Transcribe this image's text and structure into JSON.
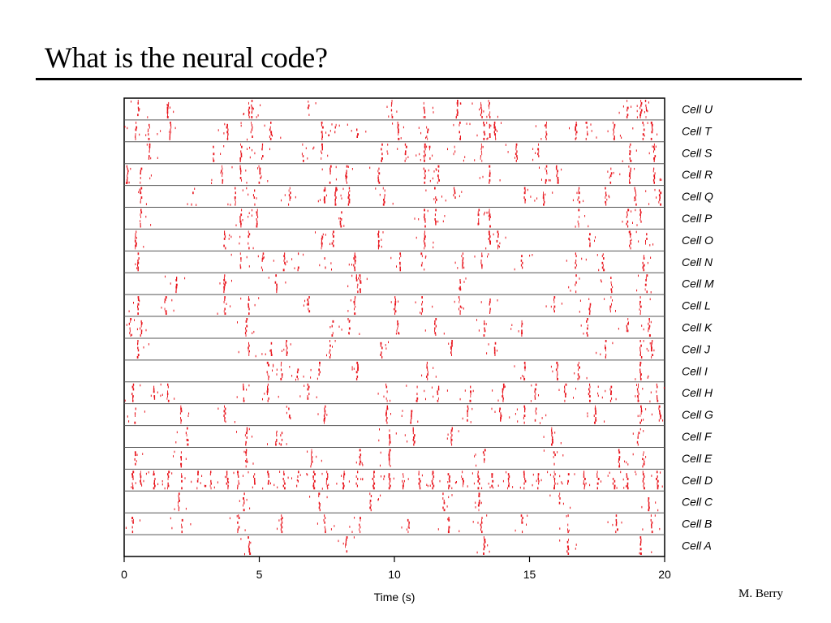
{
  "slide": {
    "title": "What is the neural code?",
    "credit": "M. Berry"
  },
  "colors": {
    "spike": "#e8141c",
    "axis": "#000000",
    "divider": "#555555",
    "text": "#000000"
  },
  "chart_data": {
    "type": "raster",
    "xlabel": "Time (s)",
    "ylabel": "",
    "xlim": [
      0,
      20
    ],
    "xticks": [
      0,
      5,
      10,
      15,
      20
    ],
    "grid": false,
    "trials_per_cell": 8,
    "cells_top_to_bottom": [
      "Cell U",
      "Cell T",
      "Cell S",
      "Cell R",
      "Cell Q",
      "Cell P",
      "Cell O",
      "Cell N",
      "Cell M",
      "Cell L",
      "Cell K",
      "Cell J",
      "Cell I",
      "Cell H",
      "Cell G",
      "Cell F",
      "Cell E",
      "Cell D",
      "Cell C",
      "Cell B",
      "Cell A"
    ],
    "event_times_s": {
      "Cell U": [
        0.5,
        1.6,
        4.6,
        4.7,
        6.8,
        9.9,
        11.1,
        12.3,
        13.2,
        13.5,
        18.6,
        19.1,
        19.3
      ],
      "Cell T": [
        0.4,
        0.9,
        1.7,
        3.8,
        4.7,
        5.4,
        7.3,
        7.8,
        8.6,
        10.1,
        11.2,
        12.4,
        13.3,
        13.5,
        13.7,
        15.6,
        16.7,
        17.1,
        18.1,
        19.2,
        19.5
      ],
      "Cell S": [
        0.9,
        3.3,
        4.3,
        5.1,
        6.6,
        7.3,
        9.5,
        10.4,
        11.1,
        11.3,
        12.2,
        13.2,
        14.5,
        15.3,
        18.7,
        19.6
      ],
      "Cell R": [
        0.1,
        0.6,
        3.6,
        4.3,
        5.0,
        7.6,
        8.2,
        9.4,
        11.1,
        11.6,
        13.5,
        15.6,
        16.0,
        18.0,
        18.7,
        19.6
      ],
      "Cell Q": [
        0.6,
        2.5,
        4.1,
        4.8,
        6.1,
        7.4,
        7.8,
        8.3,
        9.6,
        11.5,
        12.2,
        14.8,
        15.5,
        16.8,
        17.8,
        18.9,
        19.8
      ],
      "Cell P": [
        0.6,
        4.3,
        4.9,
        8.0,
        11.1,
        11.5,
        13.1,
        13.5,
        16.8,
        18.6,
        19.1
      ],
      "Cell O": [
        0.4,
        3.7,
        4.6,
        7.3,
        7.7,
        9.4,
        11.1,
        13.5,
        13.8,
        17.2,
        18.7,
        19.3
      ],
      "Cell N": [
        0.5,
        4.3,
        5.1,
        5.9,
        6.4,
        7.4,
        8.5,
        10.2,
        11.0,
        12.5,
        13.2,
        14.7,
        16.7,
        17.7,
        19.2
      ],
      "Cell M": [
        1.9,
        3.7,
        5.6,
        8.6,
        8.7,
        12.4,
        16.7,
        18.0,
        19.3
      ],
      "Cell L": [
        0.5,
        1.5,
        3.7,
        4.6,
        6.8,
        8.5,
        10.0,
        11.0,
        12.4,
        13.5,
        15.9,
        17.2,
        18.0,
        19.1
      ],
      "Cell K": [
        0.2,
        0.6,
        4.5,
        7.7,
        8.3,
        10.1,
        11.5,
        13.3,
        14.7,
        17.1,
        18.6,
        19.4
      ],
      "Cell J": [
        0.5,
        4.6,
        5.4,
        6.0,
        7.6,
        9.5,
        12.1,
        13.7,
        17.8,
        19.1,
        19.5
      ],
      "Cell I": [
        5.3,
        5.8,
        6.4,
        7.2,
        8.6,
        11.2,
        14.8,
        16.0,
        16.8,
        19.1
      ],
      "Cell H": [
        0.3,
        1.1,
        1.6,
        4.4,
        5.3,
        6.8,
        9.7,
        10.8,
        11.6,
        12.8,
        14.0,
        15.2,
        16.3,
        17.2,
        18.0,
        19.0,
        19.7
      ],
      "Cell G": [
        0.4,
        2.1,
        3.7,
        6.1,
        7.4,
        9.7,
        10.6,
        12.7,
        13.9,
        14.8,
        15.2,
        17.4,
        19.1,
        19.8
      ],
      "Cell F": [
        2.3,
        4.5,
        5.6,
        5.8,
        9.8,
        10.7,
        12.1,
        15.8,
        19.0
      ],
      "Cell E": [
        0.4,
        2.1,
        4.5,
        6.9,
        8.7,
        9.8,
        13.3,
        15.9,
        18.3,
        19.2
      ],
      "Cell D": [
        0.3,
        0.6,
        1.1,
        1.6,
        2.1,
        2.7,
        3.2,
        3.8,
        4.2,
        4.8,
        5.3,
        5.9,
        6.4,
        7.0,
        7.5,
        8.1,
        8.6,
        9.2,
        9.8,
        10.3,
        10.9,
        11.4,
        12.0,
        12.5,
        13.1,
        13.6,
        14.2,
        14.8,
        15.3,
        15.9,
        16.4,
        17.0,
        17.5,
        18.1,
        18.6,
        19.2,
        19.7
      ],
      "Cell C": [
        2.0,
        4.4,
        7.2,
        9.1,
        11.8,
        13.1,
        16.1,
        19.4
      ],
      "Cell B": [
        0.3,
        2.1,
        4.2,
        5.8,
        7.4,
        8.7,
        10.5,
        12.0,
        13.2,
        14.7,
        16.4,
        18.2,
        19.5
      ],
      "Cell A": [
        4.6,
        8.2,
        13.3,
        16.4,
        19.1
      ]
    }
  }
}
